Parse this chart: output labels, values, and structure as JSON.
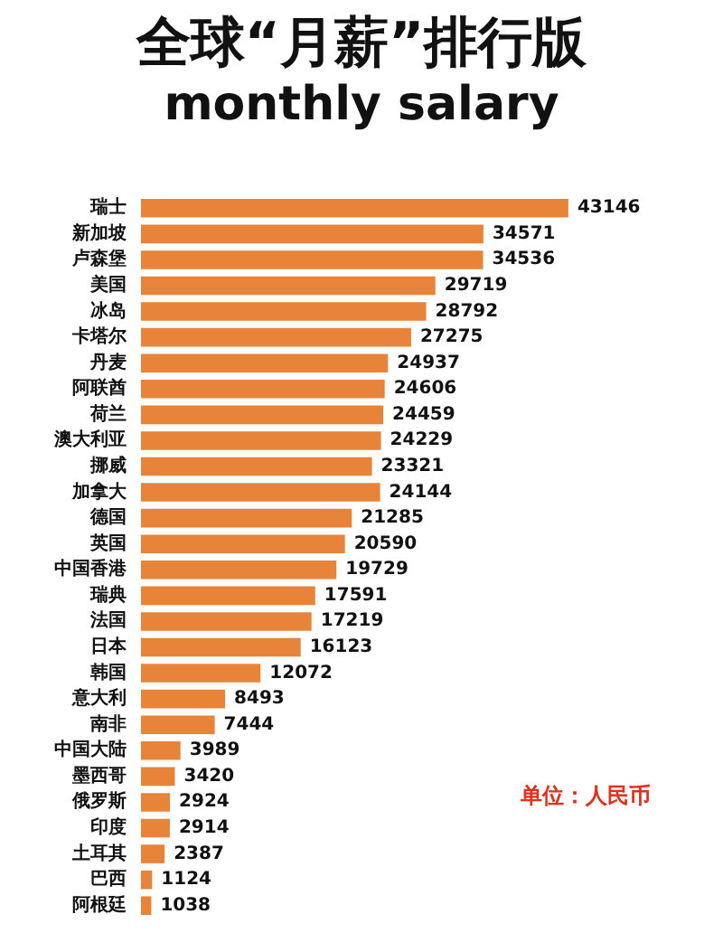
{
  "chart_data": {
    "type": "bar",
    "orientation": "horizontal",
    "title": "全球“月薪”排行版",
    "subtitle": "monthly salary",
    "categories": [
      "瑞士",
      "新加坡",
      "卢森堡",
      "美国",
      "冰岛",
      "卡塔尔",
      "丹麦",
      "阿联酋",
      "荷兰",
      "澳大利亚",
      "挪威",
      "加拿大",
      "德国",
      "英国",
      "中国香港",
      "瑞典",
      "法国",
      "日本",
      "韩国",
      "意大利",
      "南非",
      "中国大陆",
      "墨西哥",
      "俄罗斯",
      "印度",
      "土耳其",
      "巴西",
      "阿根廷"
    ],
    "values": [
      43146,
      34571,
      34536,
      29719,
      28792,
      27275,
      24937,
      24606,
      24459,
      24229,
      23321,
      24144,
      21285,
      20590,
      19729,
      17591,
      17219,
      16123,
      12072,
      8493,
      7444,
      3989,
      3420,
      2924,
      2914,
      2387,
      1124,
      1038
    ],
    "color": "#e8843a",
    "data_labels": true,
    "annotations": [
      "单位：人民币"
    ]
  }
}
